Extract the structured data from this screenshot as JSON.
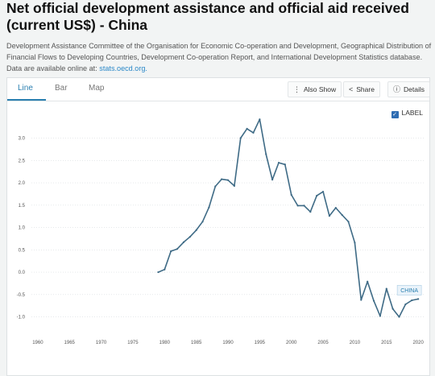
{
  "header": {
    "title": "Net official development assistance and official aid received (current US$) - China",
    "source_text": "Development Assistance Committee of the Organisation for Economic Co-operation and Development, Geographical Distribution of Financial Flows to Developing Countries, Development Co-operation Report, and International Development Statistics database. Data are available online at:",
    "source_link": "stats.oecd.org."
  },
  "tabs": [
    {
      "label": "Line"
    },
    {
      "label": "Bar"
    },
    {
      "label": "Map"
    }
  ],
  "toolbar": {
    "also_show_label": "Also Show",
    "share_label": "Share",
    "details_label": "Details"
  },
  "legend": {
    "label": "LABEL"
  },
  "colors": {
    "line": "#3f6b86",
    "accent": "#2a7fb0"
  },
  "chart_data": {
    "type": "line",
    "title": "",
    "xlabel": "",
    "ylabel": "",
    "xlim": [
      1959,
      2021
    ],
    "ylim": [
      -1.35,
      3.55
    ],
    "x_ticks": [
      1960,
      1965,
      1970,
      1975,
      1980,
      1985,
      1990,
      1995,
      2000,
      2005,
      2010,
      2015,
      2020
    ],
    "x_tick_labels": [
      "1960",
      "1965",
      "1970",
      "1975",
      "1980",
      "1985",
      "1990",
      "1995",
      "2000",
      "2005",
      "2010",
      "2015",
      "2020"
    ],
    "y_ticks": [
      -1.0,
      -0.5,
      0.0,
      0.5,
      1.0,
      1.5,
      2.0,
      2.5,
      3.0
    ],
    "y_tick_labels": [
      "-1.0",
      "-0.5",
      "0.0",
      "0.5",
      "1.0",
      "1.5",
      "2.0",
      "2.5",
      "3.0"
    ],
    "grid": true,
    "series": [
      {
        "name": "CHINA",
        "x": [
          1979,
          1980,
          1981,
          1982,
          1983,
          1984,
          1985,
          1986,
          1987,
          1988,
          1989,
          1990,
          1991,
          1992,
          1993,
          1994,
          1995,
          1996,
          1997,
          1998,
          1999,
          2000,
          2001,
          2002,
          2003,
          2004,
          2005,
          2006,
          2007,
          2008,
          2009,
          2010,
          2011,
          2012,
          2013,
          2014,
          2015,
          2016,
          2017,
          2018,
          2019,
          2020
        ],
        "values": [
          0.0,
          0.06,
          0.47,
          0.52,
          0.67,
          0.79,
          0.94,
          1.13,
          1.45,
          1.92,
          2.08,
          2.06,
          1.93,
          3.0,
          3.21,
          3.12,
          3.42,
          2.64,
          2.07,
          2.45,
          2.41,
          1.73,
          1.49,
          1.49,
          1.35,
          1.71,
          1.8,
          1.26,
          1.44,
          1.28,
          1.13,
          0.66,
          -0.62,
          -0.21,
          -0.64,
          -0.98,
          -0.37,
          -0.82,
          -1.0,
          -0.72,
          -0.63,
          -0.6
        ]
      }
    ]
  }
}
